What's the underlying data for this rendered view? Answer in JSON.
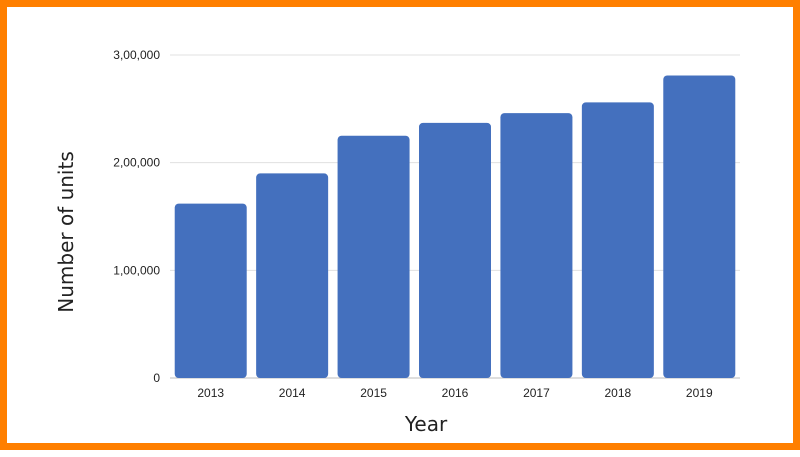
{
  "colors": {
    "border": "#ff7f00",
    "bar": "#4470be",
    "grid": "#e0e0e0",
    "text": "#222222"
  },
  "chart_data": {
    "type": "bar",
    "title": "",
    "xlabel": "Year",
    "ylabel": "Number of units",
    "categories": [
      "2013",
      "2014",
      "2015",
      "2016",
      "2017",
      "2018",
      "2019"
    ],
    "series": [
      {
        "values": [
          162000,
          190000,
          225000,
          237000,
          246000,
          256000,
          281000
        ]
      }
    ],
    "ylim": [
      0,
      300000
    ],
    "yticks": [
      0,
      100000,
      200000,
      300000
    ],
    "ytick_labels": [
      "0",
      "1,00,000",
      "2,00,000",
      "3,00,000"
    ],
    "grid": true,
    "legend": false
  }
}
